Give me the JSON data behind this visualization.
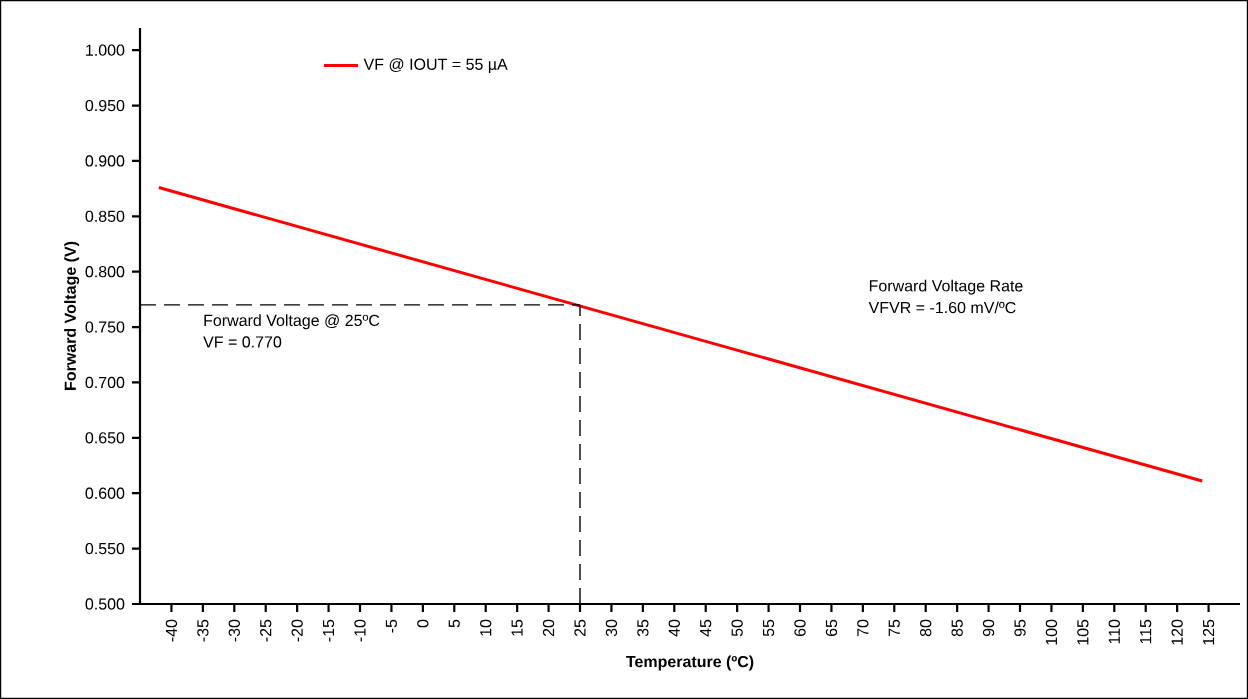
{
  "chart_data": {
    "type": "line",
    "xlabel": "Temperature (ºC)",
    "ylabel": "Forward Voltage (V)",
    "xlim": [
      -45,
      130
    ],
    "xticks": [
      -40,
      -35,
      -30,
      -25,
      -20,
      -15,
      -10,
      -5,
      0,
      5,
      10,
      15,
      20,
      25,
      30,
      35,
      40,
      45,
      50,
      55,
      60,
      65,
      70,
      75,
      80,
      85,
      90,
      95,
      100,
      105,
      110,
      115,
      120,
      125
    ],
    "ylim": [
      0.5,
      1.02
    ],
    "yticks": [
      {
        "value": 0.5,
        "label": "0.500"
      },
      {
        "value": 0.55,
        "label": "0.550"
      },
      {
        "value": 0.6,
        "label": "0.600"
      },
      {
        "value": 0.65,
        "label": "0.650"
      },
      {
        "value": 0.7,
        "label": "0.700"
      },
      {
        "value": 0.75,
        "label": "0.750"
      },
      {
        "value": 0.8,
        "label": "0.800"
      },
      {
        "value": 0.85,
        "label": "0.850"
      },
      {
        "value": 0.9,
        "label": "0.900"
      },
      {
        "value": 0.95,
        "label": "0.950"
      },
      {
        "value": 1.0,
        "label": "1.000"
      }
    ],
    "series": [
      {
        "name": "VF @ IOUT = 55 µA",
        "color": "#ff0000",
        "x": [
          -42,
          124
        ],
        "values": [
          0.876,
          0.611
        ]
      }
    ],
    "ref_lines": [
      {
        "axis": "y",
        "value": 0.77,
        "line_style": "dashed",
        "color": "#000000"
      },
      {
        "axis": "x",
        "value": 25,
        "line_style": "dashed",
        "color": "#000000"
      }
    ],
    "annotations": [
      "Forward Voltage @ 25ºC",
      "VF = 0.770",
      "Forward Voltage Rate",
      "VFVR = -1.60 mV/ºC"
    ],
    "legend": "top left",
    "grid": false,
    "marker": "none",
    "line_style": "solid"
  }
}
